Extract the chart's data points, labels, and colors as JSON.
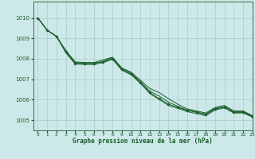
{
  "background_color": "#cce8e8",
  "grid_color": "#aacccc",
  "line_color": "#1a5c2a",
  "title": "Graphe pression niveau de la mer (hPa)",
  "xlim": [
    -0.5,
    23
  ],
  "ylim": [
    1004.5,
    1010.8
  ],
  "yticks": [
    1005,
    1006,
    1007,
    1008,
    1009,
    1010
  ],
  "xticks": [
    0,
    1,
    2,
    3,
    4,
    5,
    6,
    7,
    8,
    9,
    10,
    11,
    12,
    13,
    14,
    15,
    16,
    17,
    18,
    19,
    20,
    21,
    22,
    23
  ],
  "series_with_markers": [
    [
      1010.0,
      1009.4,
      1009.1,
      1008.35,
      1007.78,
      1007.78,
      1007.78,
      1007.85,
      1008.0,
      1007.48,
      1007.25,
      1006.85,
      1006.35,
      1006.05,
      1005.78,
      1005.62,
      1005.48,
      1005.38,
      1005.28,
      1005.55,
      1005.62,
      1005.38,
      1005.38,
      1005.18
    ]
  ],
  "series_no_markers": [
    [
      1010.0,
      1009.4,
      1009.1,
      1008.4,
      1007.85,
      1007.82,
      1007.82,
      1007.95,
      1008.08,
      1007.55,
      1007.35,
      1006.95,
      1006.55,
      1006.35,
      1006.05,
      1005.78,
      1005.55,
      1005.45,
      1005.35,
      1005.62,
      1005.72,
      1005.45,
      1005.45,
      1005.22
    ],
    [
      1010.0,
      1009.4,
      1009.1,
      1008.4,
      1007.82,
      1007.78,
      1007.78,
      1007.88,
      1008.05,
      1007.52,
      1007.3,
      1006.88,
      1006.42,
      1006.18,
      1005.88,
      1005.68,
      1005.5,
      1005.4,
      1005.3,
      1005.58,
      1005.68,
      1005.42,
      1005.42,
      1005.2
    ],
    [
      1010.0,
      1009.4,
      1009.1,
      1008.3,
      1007.75,
      1007.72,
      1007.72,
      1007.82,
      1007.98,
      1007.45,
      1007.22,
      1006.8,
      1006.3,
      1006.02,
      1005.72,
      1005.58,
      1005.42,
      1005.32,
      1005.22,
      1005.5,
      1005.6,
      1005.35,
      1005.35,
      1005.15
    ]
  ]
}
